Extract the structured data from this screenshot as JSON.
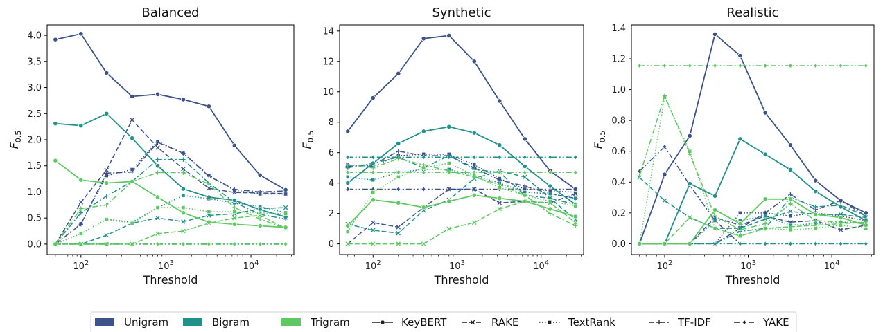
{
  "figure": {
    "legend": {
      "color_entries": [
        {
          "label": "Unigram",
          "color": "#3b528b"
        },
        {
          "label": "Bigram",
          "color": "#21918c"
        },
        {
          "label": "Trigram",
          "color": "#5ec962"
        }
      ],
      "style_entries": [
        {
          "label": "KeyBERT",
          "dash": "solid",
          "marker": "circle"
        },
        {
          "label": "RAKE",
          "dash": "dashed",
          "marker": "x"
        },
        {
          "label": "TextRank",
          "dash": "dotted",
          "marker": "square"
        },
        {
          "label": "TF-IDF",
          "dash": "dashdot",
          "marker": "plus"
        },
        {
          "label": "YAKE",
          "dash": "dashdotdot",
          "marker": "diamond"
        }
      ]
    }
  },
  "chart_data": [
    {
      "type": "line",
      "title": "Balanced",
      "xlabel": "Threshold",
      "ylabel": "F_0.5",
      "xscale": "log",
      "x_ticks": [
        {
          "value": 100,
          "label": "10^2"
        },
        {
          "value": 1000,
          "label": "10^3"
        },
        {
          "value": 10000,
          "label": "10^4"
        }
      ],
      "y_ticks": [
        "0.0",
        "0.5",
        "1.0",
        "1.5",
        "2.0",
        "2.5",
        "3.0",
        "3.5",
        "4.0"
      ],
      "ylim": [
        -0.2,
        4.2
      ],
      "xlim": [
        40,
        32000
      ],
      "x": [
        50,
        100,
        200,
        400,
        800,
        1600,
        3200,
        6400,
        12800,
        25600
      ],
      "series": [
        {
          "ngram": "Unigram",
          "method": "KeyBERT",
          "values": [
            3.92,
            4.03,
            3.28,
            2.83,
            2.87,
            2.77,
            2.64,
            1.89,
            1.32,
            1.04
          ]
        },
        {
          "ngram": "Unigram",
          "method": "RAKE",
          "values": [
            0.0,
            0.8,
            1.42,
            2.38,
            1.85,
            1.44,
            1.07,
            0.99,
            0.98,
            0.97
          ]
        },
        {
          "ngram": "Unigram",
          "method": "TextRank",
          "values": [
            0.0,
            0.39,
            1.31,
            1.43,
            1.97,
            1.74,
            1.32,
            1.03,
            0.96,
            0.96
          ]
        },
        {
          "ngram": "Unigram",
          "method": "TF-IDF",
          "values": [
            0.0,
            0.38,
            1.36,
            1.38,
            1.95,
            1.74,
            1.3,
            1.05,
            1.0,
            1.02
          ]
        },
        {
          "ngram": "Unigram",
          "method": "YAKE",
          "values": [
            0.0,
            0.0,
            0.0,
            0.0,
            0.0,
            0.0,
            0.0,
            0.0,
            0.0,
            0.0
          ]
        },
        {
          "ngram": "Bigram",
          "method": "KeyBERT",
          "values": [
            2.31,
            2.27,
            2.5,
            2.03,
            1.5,
            1.06,
            0.9,
            0.84,
            0.66,
            0.52
          ]
        },
        {
          "ngram": "Bigram",
          "method": "RAKE",
          "values": [
            0.0,
            0.0,
            0.17,
            0.4,
            0.5,
            0.43,
            0.55,
            0.58,
            0.68,
            0.7
          ]
        },
        {
          "ngram": "Bigram",
          "method": "TextRank",
          "values": [
            0.0,
            0.2,
            0.48,
            0.42,
            0.7,
            0.93,
            0.87,
            0.79,
            0.72,
            0.6
          ]
        },
        {
          "ngram": "Bigram",
          "method": "TF-IDF",
          "values": [
            0.0,
            0.6,
            0.92,
            1.2,
            1.62,
            1.62,
            1.17,
            0.8,
            0.57,
            0.48
          ]
        },
        {
          "ngram": "Bigram",
          "method": "YAKE",
          "values": [
            0.0,
            0.0,
            0.0,
            0.0,
            0.0,
            0.0,
            0.0,
            0.0,
            0.0,
            0.0
          ]
        },
        {
          "ngram": "Trigram",
          "method": "KeyBERT",
          "values": [
            1.6,
            1.23,
            1.17,
            1.2,
            0.9,
            0.6,
            0.42,
            0.38,
            0.35,
            0.32
          ]
        },
        {
          "ngram": "Trigram",
          "method": "RAKE",
          "values": [
            0.0,
            0.0,
            0.0,
            0.0,
            0.2,
            0.25,
            0.4,
            0.5,
            0.55,
            0.3
          ]
        },
        {
          "ngram": "Trigram",
          "method": "TextRank",
          "values": [
            0.0,
            0.2,
            0.47,
            0.4,
            0.7,
            0.7,
            0.62,
            0.62,
            0.6,
            0.58
          ]
        },
        {
          "ngram": "Trigram",
          "method": "TF-IDF",
          "values": [
            0.0,
            0.68,
            0.75,
            1.2,
            1.37,
            1.37,
            1.15,
            0.7,
            0.48,
            0.3
          ]
        },
        {
          "ngram": "Trigram",
          "method": "YAKE",
          "values": [
            0.0,
            0.0,
            0.0,
            0.0,
            0.0,
            0.0,
            0.0,
            0.0,
            0.0,
            0.0
          ]
        }
      ]
    },
    {
      "type": "line",
      "title": "Synthetic",
      "xlabel": "Threshold",
      "ylabel": "F_0.5",
      "xscale": "log",
      "x_ticks": [
        {
          "value": 100,
          "label": "10^2"
        },
        {
          "value": 1000,
          "label": "10^3"
        },
        {
          "value": 10000,
          "label": "10^4"
        }
      ],
      "y_ticks": [
        "0",
        "2",
        "4",
        "6",
        "8",
        "10",
        "12",
        "14"
      ],
      "ylim": [
        -0.7,
        14.4
      ],
      "xlim": [
        40,
        32000
      ],
      "x": [
        50,
        100,
        200,
        400,
        800,
        1600,
        3200,
        6400,
        12800,
        25600
      ],
      "series": [
        {
          "ngram": "Unigram",
          "method": "KeyBERT",
          "values": [
            7.4,
            9.6,
            11.2,
            13.5,
            13.7,
            12.0,
            9.4,
            6.9,
            4.8,
            3.6
          ]
        },
        {
          "ngram": "Unigram",
          "method": "RAKE",
          "values": [
            0.0,
            1.4,
            1.1,
            2.4,
            3.6,
            3.6,
            2.7,
            2.8,
            2.7,
            3.3
          ]
        },
        {
          "ngram": "Unigram",
          "method": "TextRank",
          "values": [
            5.2,
            5.1,
            5.8,
            5.9,
            5.9,
            5.2,
            4.3,
            3.6,
            3.5,
            3.4
          ]
        },
        {
          "ngram": "Unigram",
          "method": "TF-IDF",
          "values": [
            5.1,
            5.2,
            6.1,
            5.8,
            5.8,
            5.0,
            4.2,
            3.8,
            3.3,
            3.0
          ]
        },
        {
          "ngram": "Unigram",
          "method": "YAKE",
          "values": [
            3.6,
            3.6,
            3.6,
            3.6,
            3.6,
            3.6,
            3.6,
            3.6,
            3.6,
            3.6
          ]
        },
        {
          "ngram": "Bigram",
          "method": "KeyBERT",
          "values": [
            4.0,
            5.3,
            6.6,
            7.4,
            7.7,
            7.3,
            6.5,
            5.1,
            3.8,
            2.6
          ]
        },
        {
          "ngram": "Bigram",
          "method": "RAKE",
          "values": [
            1.3,
            0.9,
            0.7,
            2.2,
            2.9,
            4.3,
            4.8,
            4.4,
            3.0,
            1.6
          ]
        },
        {
          "ngram": "Bigram",
          "method": "TextRank",
          "values": [
            4.4,
            4.2,
            4.7,
            4.9,
            4.9,
            4.5,
            4.0,
            3.4,
            3.3,
            3.0
          ]
        },
        {
          "ngram": "Bigram",
          "method": "TF-IDF",
          "values": [
            5.0,
            5.3,
            5.7,
            5.0,
            5.8,
            4.9,
            4.7,
            3.2,
            3.0,
            2.6
          ]
        },
        {
          "ngram": "Bigram",
          "method": "YAKE",
          "values": [
            5.7,
            5.7,
            5.7,
            5.7,
            5.7,
            5.7,
            5.7,
            5.7,
            5.7,
            5.7
          ]
        },
        {
          "ngram": "Trigram",
          "method": "KeyBERT",
          "values": [
            1.2,
            2.9,
            2.7,
            2.4,
            2.8,
            3.2,
            3.0,
            2.8,
            2.3,
            1.8
          ]
        },
        {
          "ngram": "Trigram",
          "method": "RAKE",
          "values": [
            0.0,
            0.0,
            0.0,
            0.0,
            1.0,
            1.4,
            2.3,
            2.8,
            2.7,
            1.4
          ]
        },
        {
          "ngram": "Trigram",
          "method": "TextRank",
          "values": [
            0.8,
            3.4,
            4.4,
            5.0,
            5.3,
            4.5,
            3.7,
            3.2,
            2.8,
            2.5
          ]
        },
        {
          "ngram": "Trigram",
          "method": "TF-IDF",
          "values": [
            5.2,
            5.0,
            5.6,
            5.2,
            4.8,
            4.4,
            3.9,
            3.2,
            2.0,
            1.2
          ]
        },
        {
          "ngram": "Trigram",
          "method": "YAKE",
          "values": [
            4.7,
            4.7,
            4.7,
            4.7,
            4.7,
            4.7,
            4.7,
            4.7,
            4.7,
            4.7
          ]
        }
      ]
    },
    {
      "type": "line",
      "title": "Realistic",
      "xlabel": "Threshold",
      "ylabel": "F_0.5",
      "xscale": "log",
      "x_ticks": [
        {
          "value": 100,
          "label": "10^2"
        },
        {
          "value": 1000,
          "label": "10^3"
        },
        {
          "value": 10000,
          "label": "10^4"
        }
      ],
      "y_ticks": [
        "0.0",
        "0.2",
        "0.4",
        "0.6",
        "0.8",
        "1.0",
        "1.2",
        "1.4"
      ],
      "ylim": [
        -0.07,
        1.42
      ],
      "xlim": [
        40,
        32000
      ],
      "x": [
        50,
        100,
        200,
        400,
        800,
        1600,
        3200,
        6400,
        12800,
        25600
      ],
      "series": [
        {
          "ngram": "Unigram",
          "method": "KeyBERT",
          "values": [
            0.0,
            0.45,
            0.7,
            1.36,
            1.22,
            0.85,
            0.64,
            0.41,
            0.28,
            0.2
          ]
        },
        {
          "ngram": "Unigram",
          "method": "RAKE",
          "values": [
            0.0,
            0.0,
            0.0,
            0.17,
            0.12,
            0.18,
            0.14,
            0.15,
            0.09,
            0.12
          ]
        },
        {
          "ngram": "Unigram",
          "method": "TextRank",
          "values": [
            0.0,
            0.0,
            0.0,
            0.0,
            0.2,
            0.2,
            0.18,
            0.2,
            0.18,
            0.15
          ]
        },
        {
          "ngram": "Unigram",
          "method": "TF-IDF",
          "values": [
            0.0,
            0.0,
            0.0,
            0.0,
            0.1,
            0.2,
            0.32,
            0.22,
            0.28,
            0.18
          ]
        },
        {
          "ngram": "Unigram",
          "method": "YAKE",
          "values": [
            0.47,
            0.63,
            0.38,
            0.15,
            0.0,
            0.0,
            0.0,
            0.0,
            0.0,
            0.0
          ]
        },
        {
          "ngram": "Bigram",
          "method": "KeyBERT",
          "values": [
            0.0,
            0.0,
            0.39,
            0.31,
            0.68,
            0.58,
            0.48,
            0.34,
            0.24,
            0.15
          ]
        },
        {
          "ngram": "Bigram",
          "method": "RAKE",
          "values": [
            0.43,
            0.28,
            0.17,
            0.1,
            0.1,
            0.16,
            0.21,
            0.19,
            0.19,
            0.17
          ]
        },
        {
          "ngram": "Bigram",
          "method": "TextRank",
          "values": [
            0.0,
            0.0,
            0.0,
            0.15,
            0.15,
            0.18,
            0.12,
            0.13,
            0.14,
            0.14
          ]
        },
        {
          "ngram": "Bigram",
          "method": "TF-IDF",
          "values": [
            0.0,
            0.0,
            0.0,
            0.0,
            0.08,
            0.1,
            0.3,
            0.24,
            0.25,
            0.18
          ]
        },
        {
          "ngram": "Bigram",
          "method": "YAKE",
          "values": [
            0.0,
            0.0,
            0.0,
            0.0,
            0.0,
            0.0,
            0.0,
            0.0,
            0.0,
            0.0
          ]
        },
        {
          "ngram": "Trigram",
          "method": "KeyBERT",
          "values": [
            0.0,
            0.0,
            0.0,
            0.22,
            0.13,
            0.29,
            0.29,
            0.19,
            0.17,
            0.12
          ]
        },
        {
          "ngram": "Trigram",
          "method": "RAKE",
          "values": [
            0.0,
            0.0,
            0.17,
            0.1,
            0.05,
            0.1,
            0.11,
            0.12,
            0.13,
            0.14
          ]
        },
        {
          "ngram": "Trigram",
          "method": "TextRank",
          "values": [
            0.0,
            0.95,
            0.6,
            0.1,
            0.05,
            0.1,
            0.09,
            0.1,
            0.12,
            0.1
          ]
        },
        {
          "ngram": "Trigram",
          "method": "TF-IDF",
          "values": [
            0.44,
            0.96,
            0.58,
            0.18,
            0.09,
            0.13,
            0.26,
            0.15,
            0.14,
            0.13
          ]
        },
        {
          "ngram": "Trigram",
          "method": "YAKE",
          "values": [
            1.155,
            1.155,
            1.155,
            1.155,
            1.155,
            1.155,
            1.155,
            1.155,
            1.155,
            1.155
          ]
        }
      ]
    }
  ]
}
